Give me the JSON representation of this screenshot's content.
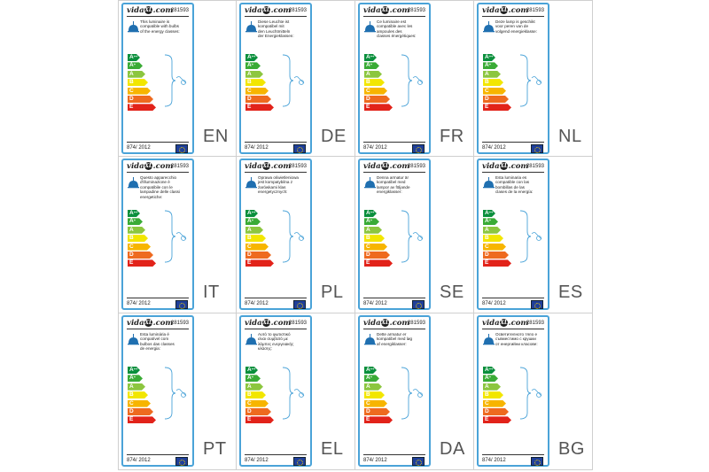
{
  "brand": {
    "prefix": "vida",
    "xl": "XL",
    "suffix": ".com"
  },
  "product_code": "281593",
  "regulation": "874/ 2012",
  "energy_classes": [
    {
      "label": "A",
      "sup": "++",
      "color": "#0a8f3c",
      "width": 14
    },
    {
      "label": "A",
      "sup": "+",
      "color": "#3aab36",
      "width": 17
    },
    {
      "label": "A",
      "sup": "",
      "color": "#8cc63f",
      "width": 20
    },
    {
      "label": "B",
      "sup": "",
      "color": "#f2e600",
      "width": 23
    },
    {
      "label": "C",
      "sup": "",
      "color": "#f7b500",
      "width": 26
    },
    {
      "label": "D",
      "sup": "",
      "color": "#ee6a1f",
      "width": 29
    },
    {
      "label": "E",
      "sup": "",
      "color": "#e2231a",
      "width": 32
    }
  ],
  "colors": {
    "frame": "#4aa3d8",
    "lamp": "#1f6fb0",
    "eu_flag": "#1f3f9a"
  },
  "panels": [
    {
      "lang": "EN",
      "text": "This luminaire is\ncompatible with bulbs\nof the energy classes:"
    },
    {
      "lang": "DE",
      "text": "Diese Leuchte ist\nkompatibel mit\nden Leuchtmitteln\nder Energieklassen:"
    },
    {
      "lang": "FR",
      "text": "Ce luminaire est\ncompatible avec les\nampoules des\nclasses énergétiques:"
    },
    {
      "lang": "NL",
      "text": "Deze lamp is geschikt\nvoor peren van de\nvolgend energieklasse:"
    },
    {
      "lang": "IT",
      "text": "Questo apparecchio\nd'illuminazione è\ncompatibile con le\nlampadine delle classi\nenergetiche:"
    },
    {
      "lang": "PL",
      "text": "Oprawa oświetleniowa\njest kompatybilna z\nżarówkami klas\nenergetycznych:"
    },
    {
      "lang": "SE",
      "text": "Denna armatur är\nkompatibel med\nlampor av följande\nenergiklasser:"
    },
    {
      "lang": "ES",
      "text": "Esta luminaria es\ncompatible con las\nbombillas de las\nclases de la energía:"
    },
    {
      "lang": "PT",
      "text": "Esta luminária é\ncompatível com\nbulbos das classes\nde energia:"
    },
    {
      "lang": "EL",
      "text": "Αυτό το φωτιστικό\nείναι συμβατό με\nλάμπες ενεργειακής\nκλάσης:"
    },
    {
      "lang": "DA",
      "text": "Dette armatur er\nkompatibel med løg\naf energiklasser:"
    },
    {
      "lang": "BG",
      "text": "Осветителното тяло е\nсъвместимо с крушки\nот енергийни класове:"
    }
  ]
}
